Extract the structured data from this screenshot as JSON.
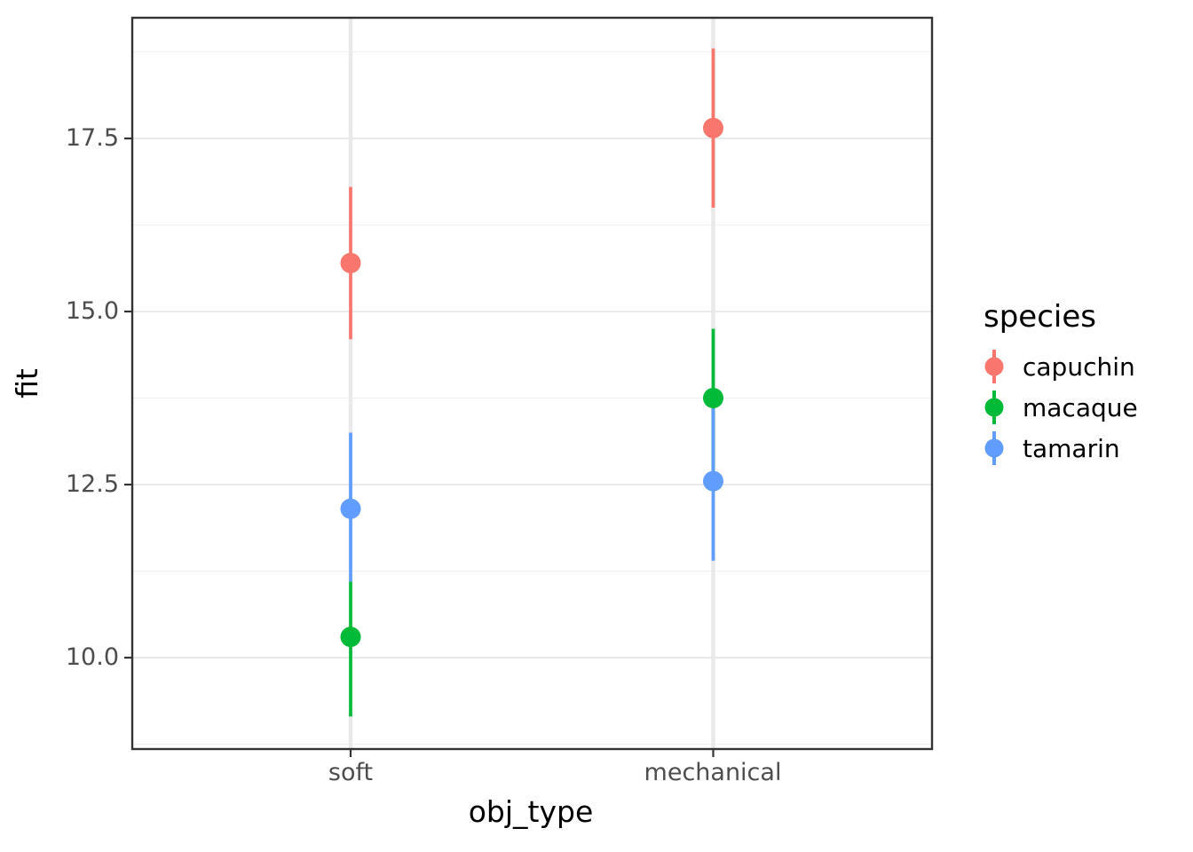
{
  "chart_data": {
    "type": "pointrange",
    "title": "",
    "xlabel": "obj_type",
    "ylabel": "fit",
    "categories": [
      "soft",
      "mechanical"
    ],
    "y_ticks": [
      10.0,
      12.5,
      15.0,
      17.5
    ],
    "y_tick_labels": [
      "10.0",
      "12.5",
      "15.0",
      "17.5"
    ],
    "y_minor_gridlines": [
      8.75,
      11.25,
      13.75,
      16.25,
      18.75
    ],
    "ylim": [
      8.68,
      19.24
    ],
    "grid": true,
    "legend": {
      "title": "species",
      "position": "right"
    },
    "series": [
      {
        "name": "capuchin",
        "color": "#F8766D",
        "points": [
          {
            "x": "soft",
            "y": 15.7,
            "ymin": 14.6,
            "ymax": 16.8
          },
          {
            "x": "mechanical",
            "y": 17.65,
            "ymin": 16.5,
            "ymax": 18.8
          }
        ]
      },
      {
        "name": "macaque",
        "color": "#00BA38",
        "points": [
          {
            "x": "soft",
            "y": 10.3,
            "ymin": 9.15,
            "ymax": 11.1
          },
          {
            "x": "mechanical",
            "y": 13.75,
            "ymin": 12.6,
            "ymax": 14.75
          }
        ]
      },
      {
        "name": "tamarin",
        "color": "#619CFF",
        "points": [
          {
            "x": "soft",
            "y": 12.15,
            "ymin": 11.1,
            "ymax": 13.25
          },
          {
            "x": "mechanical",
            "y": 12.55,
            "ymin": 11.4,
            "ymax": 13.6
          }
        ]
      }
    ],
    "style": {
      "panel_background": "#FFFFFF",
      "panel_border": "#333333",
      "grid_major": "#E9E9E9",
      "grid_minor": "#F0F0F0",
      "axis_tick": "#333333",
      "tick_label_color": "#4D4D4D",
      "title_color": "#000000"
    }
  }
}
